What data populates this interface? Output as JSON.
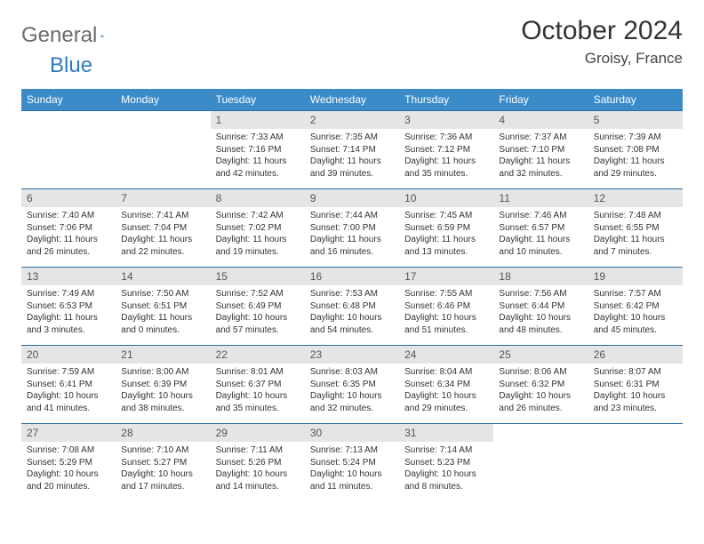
{
  "brand": {
    "general": "General",
    "blue": "Blue"
  },
  "title": "October 2024",
  "location": "Groisy, France",
  "colors": {
    "header_bg": "#3b8bc9",
    "header_text": "#ffffff",
    "daynum_bg": "#e3e5e7",
    "row_border": "#2e6ea0",
    "logo_blue": "#2f7bbf",
    "logo_gray": "#6b6b6b"
  },
  "weekdays": [
    "Sunday",
    "Monday",
    "Tuesday",
    "Wednesday",
    "Thursday",
    "Friday",
    "Saturday"
  ],
  "weeks": [
    [
      {
        "empty": true
      },
      {
        "empty": true
      },
      {
        "num": "1",
        "sunrise": "Sunrise: 7:33 AM",
        "sunset": "Sunset: 7:16 PM",
        "daylight": "Daylight: 11 hours and 42 minutes."
      },
      {
        "num": "2",
        "sunrise": "Sunrise: 7:35 AM",
        "sunset": "Sunset: 7:14 PM",
        "daylight": "Daylight: 11 hours and 39 minutes."
      },
      {
        "num": "3",
        "sunrise": "Sunrise: 7:36 AM",
        "sunset": "Sunset: 7:12 PM",
        "daylight": "Daylight: 11 hours and 35 minutes."
      },
      {
        "num": "4",
        "sunrise": "Sunrise: 7:37 AM",
        "sunset": "Sunset: 7:10 PM",
        "daylight": "Daylight: 11 hours and 32 minutes."
      },
      {
        "num": "5",
        "sunrise": "Sunrise: 7:39 AM",
        "sunset": "Sunset: 7:08 PM",
        "daylight": "Daylight: 11 hours and 29 minutes."
      }
    ],
    [
      {
        "num": "6",
        "sunrise": "Sunrise: 7:40 AM",
        "sunset": "Sunset: 7:06 PM",
        "daylight": "Daylight: 11 hours and 26 minutes."
      },
      {
        "num": "7",
        "sunrise": "Sunrise: 7:41 AM",
        "sunset": "Sunset: 7:04 PM",
        "daylight": "Daylight: 11 hours and 22 minutes."
      },
      {
        "num": "8",
        "sunrise": "Sunrise: 7:42 AM",
        "sunset": "Sunset: 7:02 PM",
        "daylight": "Daylight: 11 hours and 19 minutes."
      },
      {
        "num": "9",
        "sunrise": "Sunrise: 7:44 AM",
        "sunset": "Sunset: 7:00 PM",
        "daylight": "Daylight: 11 hours and 16 minutes."
      },
      {
        "num": "10",
        "sunrise": "Sunrise: 7:45 AM",
        "sunset": "Sunset: 6:59 PM",
        "daylight": "Daylight: 11 hours and 13 minutes."
      },
      {
        "num": "11",
        "sunrise": "Sunrise: 7:46 AM",
        "sunset": "Sunset: 6:57 PM",
        "daylight": "Daylight: 11 hours and 10 minutes."
      },
      {
        "num": "12",
        "sunrise": "Sunrise: 7:48 AM",
        "sunset": "Sunset: 6:55 PM",
        "daylight": "Daylight: 11 hours and 7 minutes."
      }
    ],
    [
      {
        "num": "13",
        "sunrise": "Sunrise: 7:49 AM",
        "sunset": "Sunset: 6:53 PM",
        "daylight": "Daylight: 11 hours and 3 minutes."
      },
      {
        "num": "14",
        "sunrise": "Sunrise: 7:50 AM",
        "sunset": "Sunset: 6:51 PM",
        "daylight": "Daylight: 11 hours and 0 minutes."
      },
      {
        "num": "15",
        "sunrise": "Sunrise: 7:52 AM",
        "sunset": "Sunset: 6:49 PM",
        "daylight": "Daylight: 10 hours and 57 minutes."
      },
      {
        "num": "16",
        "sunrise": "Sunrise: 7:53 AM",
        "sunset": "Sunset: 6:48 PM",
        "daylight": "Daylight: 10 hours and 54 minutes."
      },
      {
        "num": "17",
        "sunrise": "Sunrise: 7:55 AM",
        "sunset": "Sunset: 6:46 PM",
        "daylight": "Daylight: 10 hours and 51 minutes."
      },
      {
        "num": "18",
        "sunrise": "Sunrise: 7:56 AM",
        "sunset": "Sunset: 6:44 PM",
        "daylight": "Daylight: 10 hours and 48 minutes."
      },
      {
        "num": "19",
        "sunrise": "Sunrise: 7:57 AM",
        "sunset": "Sunset: 6:42 PM",
        "daylight": "Daylight: 10 hours and 45 minutes."
      }
    ],
    [
      {
        "num": "20",
        "sunrise": "Sunrise: 7:59 AM",
        "sunset": "Sunset: 6:41 PM",
        "daylight": "Daylight: 10 hours and 41 minutes."
      },
      {
        "num": "21",
        "sunrise": "Sunrise: 8:00 AM",
        "sunset": "Sunset: 6:39 PM",
        "daylight": "Daylight: 10 hours and 38 minutes."
      },
      {
        "num": "22",
        "sunrise": "Sunrise: 8:01 AM",
        "sunset": "Sunset: 6:37 PM",
        "daylight": "Daylight: 10 hours and 35 minutes."
      },
      {
        "num": "23",
        "sunrise": "Sunrise: 8:03 AM",
        "sunset": "Sunset: 6:35 PM",
        "daylight": "Daylight: 10 hours and 32 minutes."
      },
      {
        "num": "24",
        "sunrise": "Sunrise: 8:04 AM",
        "sunset": "Sunset: 6:34 PM",
        "daylight": "Daylight: 10 hours and 29 minutes."
      },
      {
        "num": "25",
        "sunrise": "Sunrise: 8:06 AM",
        "sunset": "Sunset: 6:32 PM",
        "daylight": "Daylight: 10 hours and 26 minutes."
      },
      {
        "num": "26",
        "sunrise": "Sunrise: 8:07 AM",
        "sunset": "Sunset: 6:31 PM",
        "daylight": "Daylight: 10 hours and 23 minutes."
      }
    ],
    [
      {
        "num": "27",
        "sunrise": "Sunrise: 7:08 AM",
        "sunset": "Sunset: 5:29 PM",
        "daylight": "Daylight: 10 hours and 20 minutes."
      },
      {
        "num": "28",
        "sunrise": "Sunrise: 7:10 AM",
        "sunset": "Sunset: 5:27 PM",
        "daylight": "Daylight: 10 hours and 17 minutes."
      },
      {
        "num": "29",
        "sunrise": "Sunrise: 7:11 AM",
        "sunset": "Sunset: 5:26 PM",
        "daylight": "Daylight: 10 hours and 14 minutes."
      },
      {
        "num": "30",
        "sunrise": "Sunrise: 7:13 AM",
        "sunset": "Sunset: 5:24 PM",
        "daylight": "Daylight: 10 hours and 11 minutes."
      },
      {
        "num": "31",
        "sunrise": "Sunrise: 7:14 AM",
        "sunset": "Sunset: 5:23 PM",
        "daylight": "Daylight: 10 hours and 8 minutes."
      },
      {
        "empty": true
      },
      {
        "empty": true
      }
    ]
  ]
}
